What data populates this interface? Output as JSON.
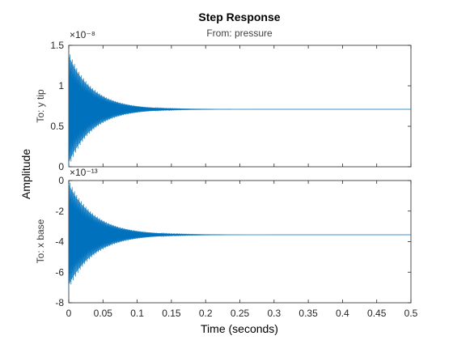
{
  "chart_data": {
    "type": "line",
    "title": "Step Response",
    "subtitle": "From: pressure",
    "xlabel": "Time (seconds)",
    "ylabel": "Amplitude",
    "x_ticks": [
      "0",
      "0.05",
      "0.1",
      "0.15",
      "0.2",
      "0.25",
      "0.3",
      "0.35",
      "0.4",
      "0.45",
      "0.5"
    ],
    "xlim": [
      0,
      0.5
    ],
    "grid": false,
    "color": "#0072BD",
    "panels": [
      {
        "row_label": "To: y tip",
        "exponent": "×10⁻⁸",
        "ylim": [
          0,
          1.5
        ],
        "y_ticks": [
          "0",
          "0.5",
          "1",
          "1.5"
        ],
        "y_tick_values": [
          0,
          0.5,
          1,
          1.5
        ],
        "steady_state": 0.71,
        "initial_amplitude": 0.71,
        "decay_time_constant": 0.035,
        "oscillation_frequency_hz": 900
      },
      {
        "row_label": "To: x base",
        "exponent": "×10⁻¹³",
        "ylim": [
          -8,
          0
        ],
        "y_ticks": [
          "-8",
          "-6",
          "-4",
          "-2",
          "0"
        ],
        "y_tick_values": [
          -8,
          -6,
          -4,
          -2,
          0
        ],
        "steady_state": -3.55,
        "initial_amplitude": 3.55,
        "decay_time_constant": 0.038,
        "oscillation_frequency_hz": 900
      }
    ]
  }
}
